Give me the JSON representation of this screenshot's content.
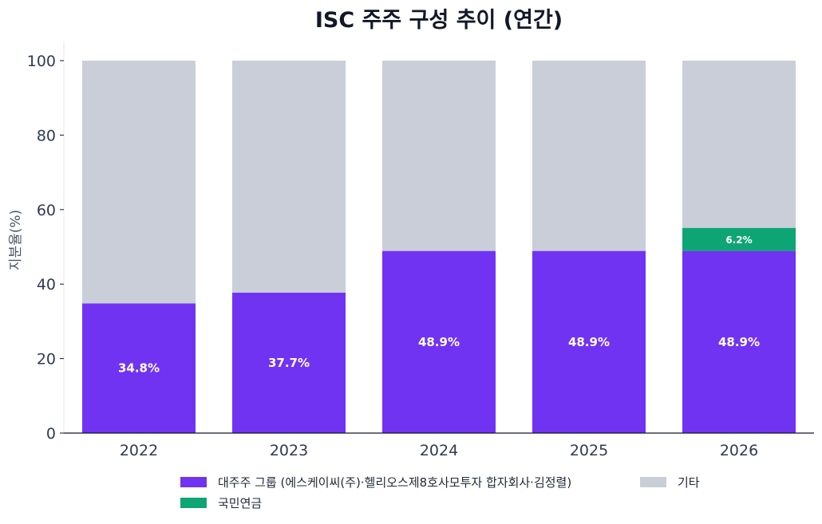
{
  "chart_data": {
    "type": "bar",
    "stacked": true,
    "title": "ISC 주주 구성 추이 (연간)",
    "ylabel": "지분율(%)",
    "xlabel": "",
    "ylim": [
      0,
      100
    ],
    "yticks": [
      0,
      20,
      40,
      60,
      80,
      100
    ],
    "categories": [
      "2022",
      "2023",
      "2024",
      "2025",
      "2026"
    ],
    "series": [
      {
        "name": "대주주 그룹 (에스케이씨(주)·헬리오스제8호사모투자 합자회사·김정렬)",
        "color": "#7133f2",
        "values": [
          34.8,
          37.7,
          48.9,
          48.9,
          48.9
        ],
        "labels": [
          "34.8%",
          "37.7%",
          "48.9%",
          "48.9%",
          "48.9%"
        ]
      },
      {
        "name": "국민연금",
        "color": "#0ea574",
        "values": [
          0,
          0,
          0,
          0,
          6.2
        ],
        "labels": [
          "",
          "",
          "",
          "",
          "6.2%"
        ]
      },
      {
        "name": "기타",
        "color": "#c9ced8",
        "values": [
          65.2,
          62.3,
          51.1,
          51.1,
          44.9
        ],
        "labels": [
          "",
          "",
          "",
          "",
          ""
        ]
      }
    ],
    "grid": false,
    "legend_position": "bottom"
  }
}
